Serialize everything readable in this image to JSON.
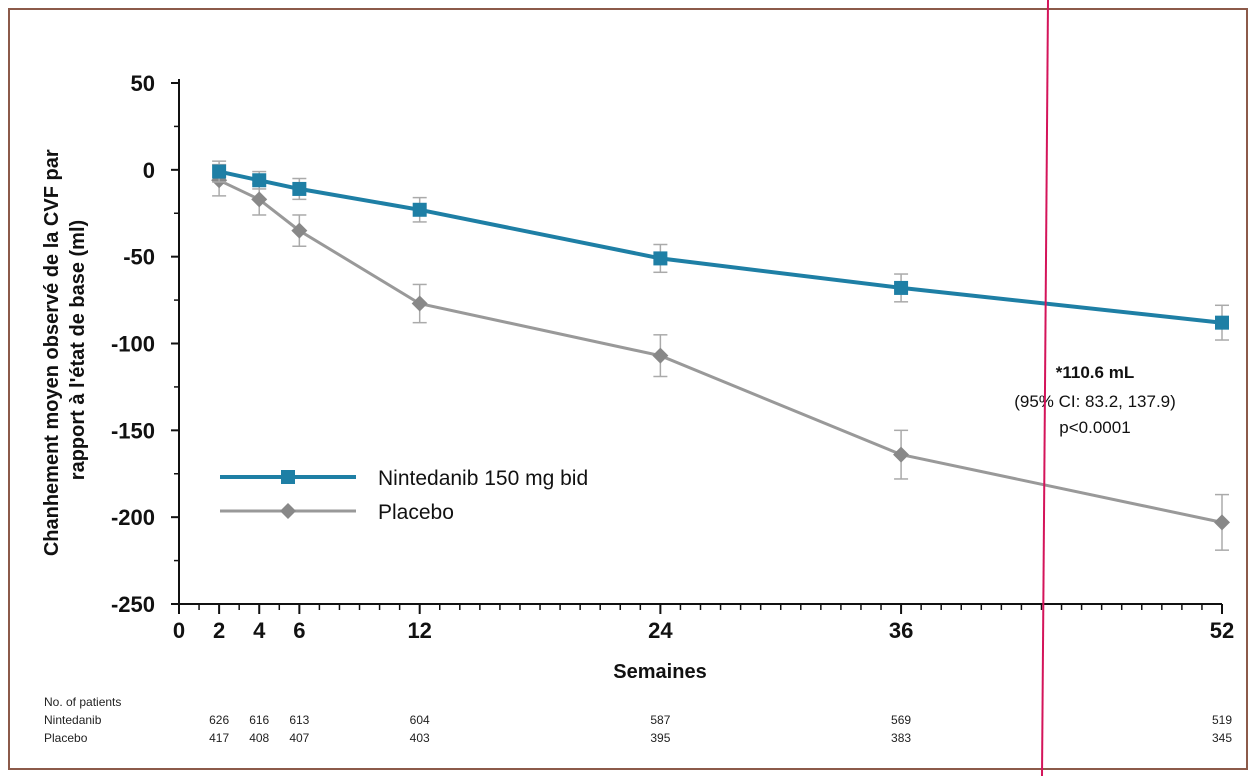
{
  "chart_data": {
    "type": "line",
    "xlabel": "Semaines",
    "ylabel_line1": "Chanhement moyen observé de la CVF par",
    "ylabel_line2": "rapport à l'état de base (ml)",
    "xlim": [
      0,
      52
    ],
    "ylim": [
      -250,
      50
    ],
    "x_ticks": [
      0,
      2,
      4,
      6,
      12,
      24,
      36,
      52
    ],
    "y_ticks": [
      50,
      0,
      -50,
      -100,
      -150,
      -200,
      -250
    ],
    "x": [
      2,
      4,
      6,
      12,
      24,
      36,
      52
    ],
    "series": [
      {
        "name": "Nintedanib 150 mg bid",
        "color": "#1e7fa5",
        "marker": "square",
        "values": [
          -1,
          -6,
          -11,
          -23,
          -51,
          -68,
          -88
        ],
        "error": [
          6,
          5,
          6,
          7,
          8,
          8,
          10
        ]
      },
      {
        "name": "Placebo",
        "color": "#999999",
        "marker": "diamond",
        "values": [
          -6,
          -17,
          -35,
          -77,
          -107,
          -164,
          -203
        ],
        "error": [
          9,
          9,
          9,
          11,
          12,
          14,
          16
        ]
      }
    ],
    "legend_position": "bottom-left",
    "grid": false,
    "annotation": {
      "line1": "*110.6 mL",
      "line2": "(95% CI: 83.2, 137.9)",
      "line3": "p<0.0001"
    },
    "patients_table": {
      "header": "No. of patients",
      "rows": [
        {
          "label": "Nintedanib",
          "values": [
            "626",
            "616",
            "613",
            "604",
            "587",
            "569",
            "519"
          ]
        },
        {
          "label": "Placebo",
          "values": [
            "417",
            "408",
            "407",
            "403",
            "395",
            "383",
            "345"
          ]
        }
      ]
    }
  },
  "colors": {
    "frame": "#8c5a4a",
    "overlay_line": "#d4145a"
  }
}
